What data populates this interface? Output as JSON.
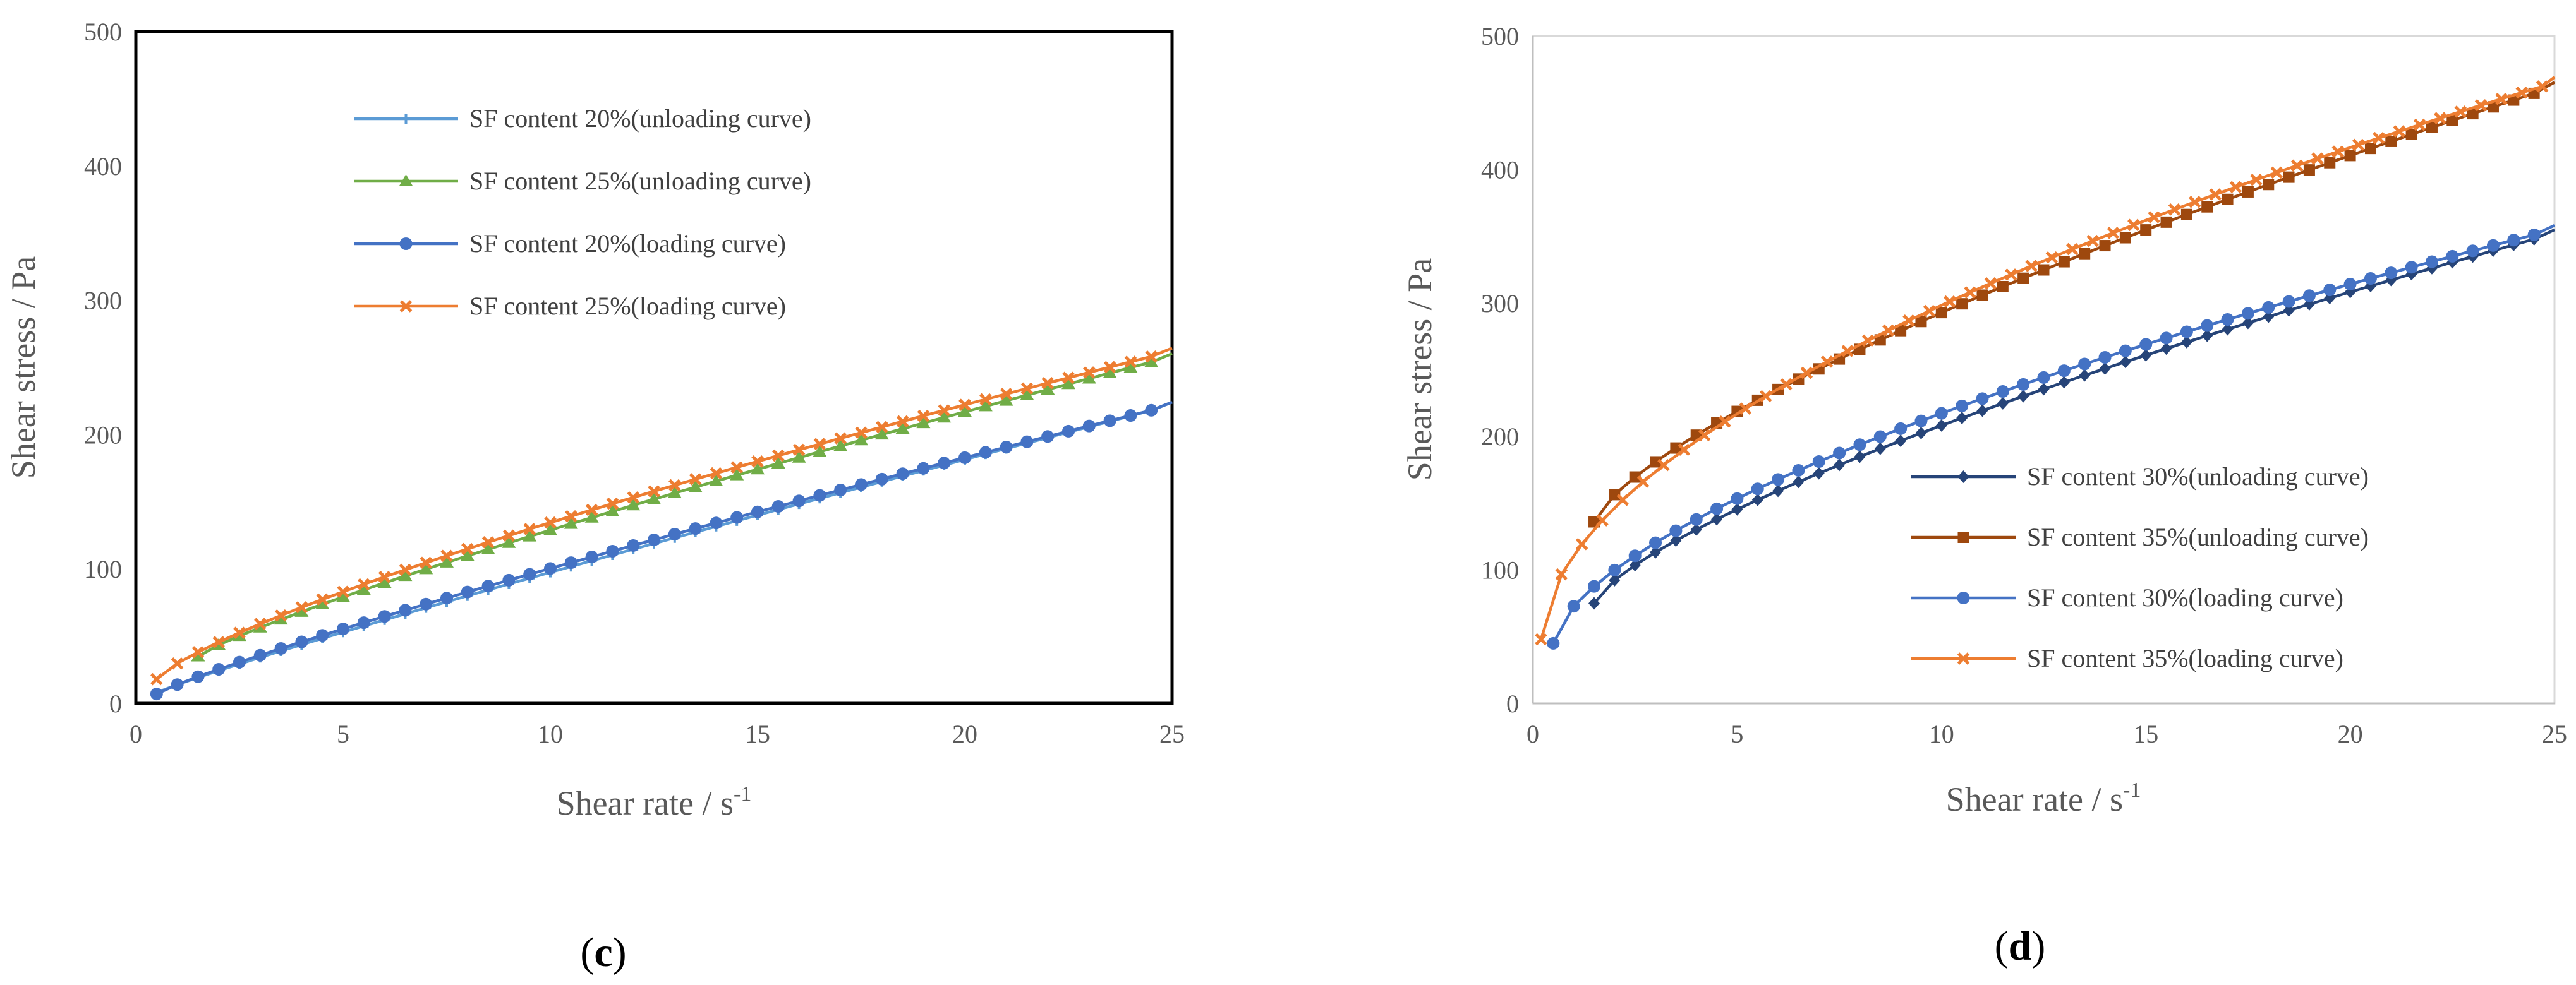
{
  "chart_data": [
    {
      "type": "line",
      "panel_label": "c",
      "xlabel": "Shear rate / s",
      "xlabel_sup": "-1",
      "ylabel": "Shear stress / Pa",
      "xlim": [
        0,
        25
      ],
      "ylim": [
        0,
        500
      ],
      "xticks": [
        0,
        5,
        10,
        15,
        20,
        25
      ],
      "yticks": [
        0,
        100,
        200,
        300,
        400,
        500
      ],
      "legend_position": "top-center",
      "series": [
        {
          "name": "SF content 20%(unloading curve)",
          "color": "#5b9bd5",
          "marker": "plus",
          "x_start": 0.5,
          "x_step": 0.5,
          "y_start": 8,
          "y_end": 222,
          "exponent": 0.92
        },
        {
          "name": "SF content 25%(unloading curve)",
          "color": "#70ad47",
          "marker": "triangle",
          "x_start": 1.5,
          "x_step": 0.5,
          "y_start": 35,
          "y_end": 258,
          "exponent": 0.85
        },
        {
          "name": "SF content 20%(loading curve)",
          "color": "#4472c4",
          "marker": "circle",
          "x_start": 0.5,
          "x_step": 0.5,
          "y_start": 7,
          "y_end": 222,
          "exponent": 0.88
        },
        {
          "name": "SF content 25%(loading curve)",
          "color": "#ed7d31",
          "marker": "x",
          "x_start": 0.5,
          "x_step": 0.5,
          "y_start": 18,
          "y_end": 262,
          "exponent": 0.78
        }
      ]
    },
    {
      "type": "line",
      "panel_label": "d",
      "xlabel": "Shear rate / s",
      "xlabel_sup": "-1",
      "ylabel": "Shear stress / Pa",
      "xlim": [
        0,
        25
      ],
      "ylim": [
        0,
        500
      ],
      "xticks": [
        0,
        5,
        10,
        15,
        20,
        25
      ],
      "yticks": [
        0,
        100,
        200,
        300,
        400,
        500
      ],
      "legend_position": "center",
      "series": [
        {
          "name": "SF content 30%(unloading curve)",
          "color": "#264478",
          "marker": "diamond",
          "x_start": 1.5,
          "x_step": 0.5,
          "y_start": 75,
          "y_end": 352,
          "exponent": 0.72
        },
        {
          "name": "SF content 35%(unloading curve)",
          "color": "#9e480e",
          "marker": "square",
          "x_start": 1.5,
          "x_step": 0.5,
          "y_start": 136,
          "y_end": 462,
          "exponent": 0.72
        },
        {
          "name": "SF content 30%(loading curve)",
          "color": "#4472c4",
          "marker": "circle",
          "x_start": 0.5,
          "x_step": 0.5,
          "y_start": 45,
          "y_end": 355,
          "exponent": 0.62
        },
        {
          "name": "SF content 35%(loading curve)",
          "color": "#ed7d31",
          "marker": "x",
          "x_start": 0.2,
          "x_step": 0.5,
          "y_start": 48,
          "y_end": 465,
          "exponent": 0.55
        }
      ]
    }
  ]
}
